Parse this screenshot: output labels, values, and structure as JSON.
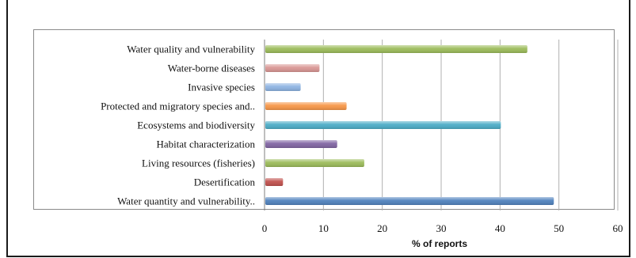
{
  "chart_data": {
    "type": "bar",
    "orientation": "horizontal",
    "categories": [
      "Water quality and vulnerability",
      "Water-borne diseases",
      "Invasive species",
      "Protected and migratory species and..",
      "Ecosystems and biodiversity",
      "Habitat characterization",
      "Living resources (fisheries)",
      "Desertification",
      "Water quantity and vulnerability.."
    ],
    "values": [
      44.5,
      9.2,
      6,
      13.8,
      40,
      12.2,
      16.8,
      3,
      49
    ],
    "colors": [
      "#9bbb59",
      "#d99694",
      "#8db3e2",
      "#f79646",
      "#4bacc6",
      "#8064a2",
      "#9bbb59",
      "#c0504d",
      "#4f81bd"
    ],
    "xlabel": "% of reports",
    "xlim": [
      0,
      60
    ],
    "xticks": [
      0,
      10,
      20,
      30,
      40,
      50,
      60
    ],
    "grid": true
  }
}
